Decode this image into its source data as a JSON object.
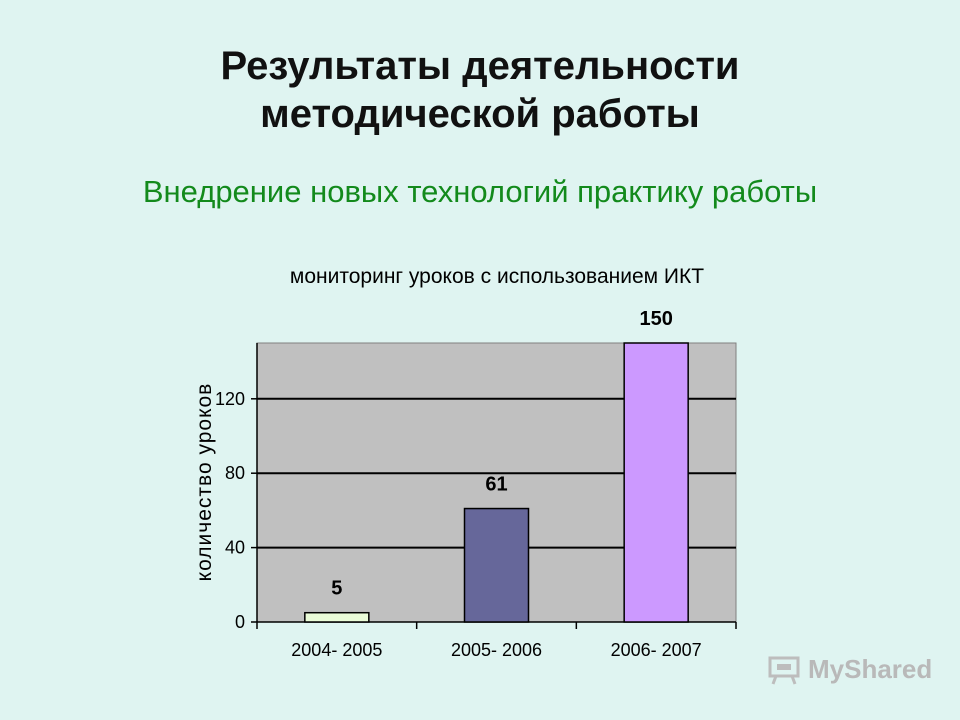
{
  "slide": {
    "title_line1": "Результаты деятельности",
    "title_line2": "методической работы",
    "subtitle": "Внедрение новых технологий практику работы"
  },
  "chart_data": {
    "type": "bar",
    "title": "мониторинг уроков с использованием ИКТ",
    "ylabel": "количество уроков",
    "xlabel": "",
    "categories": [
      "2004- 2005",
      "2005- 2006",
      "2006- 2007"
    ],
    "values": [
      5,
      61,
      150
    ],
    "data_labels": [
      "5",
      "61",
      "150"
    ],
    "bar_colors": [
      "#eafcd8",
      "#66679a",
      "#cc99ff"
    ],
    "yticks": [
      0,
      40,
      80,
      120
    ],
    "ylim": [
      0,
      150
    ],
    "grid": true,
    "plot_background": "#c0c0c0"
  },
  "watermark": {
    "text": "MyShared"
  }
}
